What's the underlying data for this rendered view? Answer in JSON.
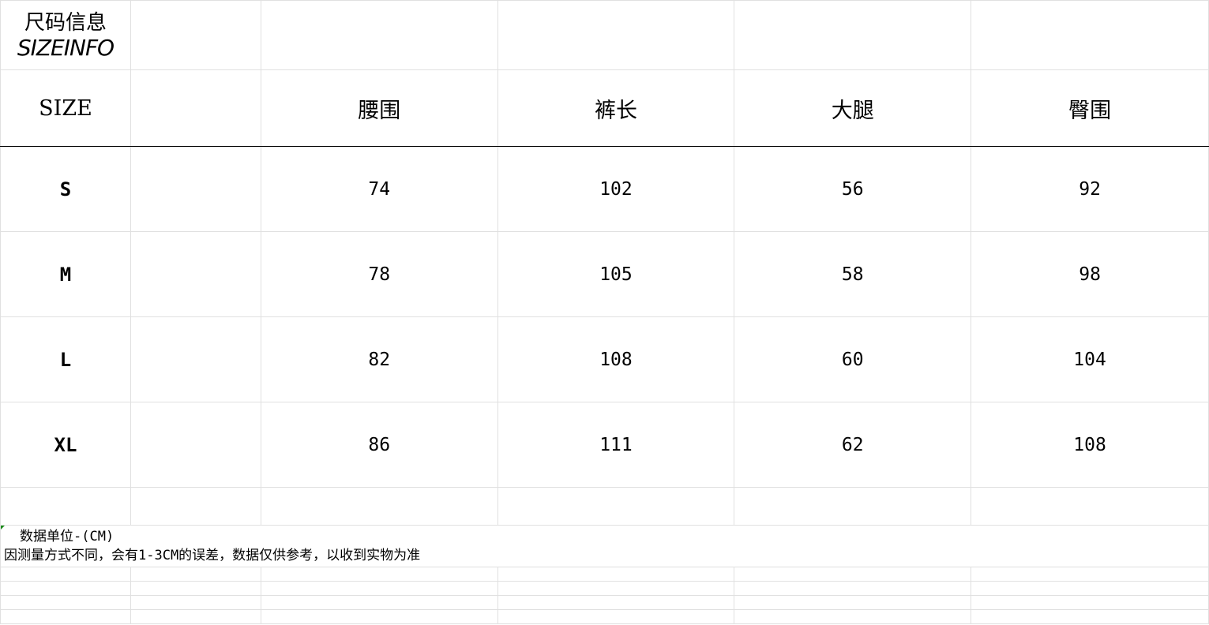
{
  "title": {
    "cn": "尺码信息",
    "en": "SIZEINFO"
  },
  "header": {
    "size": "SIZE",
    "columns": [
      "腰围",
      "裤长",
      "大腿",
      "臀围"
    ]
  },
  "rows": [
    {
      "size": "S",
      "values": [
        "74",
        "102",
        "56",
        "92"
      ]
    },
    {
      "size": "M",
      "values": [
        "78",
        "105",
        "58",
        "98"
      ]
    },
    {
      "size": "L",
      "values": [
        "82",
        "108",
        "60",
        "104"
      ]
    },
    {
      "size": "XL",
      "values": [
        "86",
        "111",
        "62",
        "108"
      ]
    }
  ],
  "note": {
    "unit": "数据单位-(CM)",
    "disclaimer": "因测量方式不同，会有1-3CM的误差，数据仅供参考，以收到实物为准"
  }
}
